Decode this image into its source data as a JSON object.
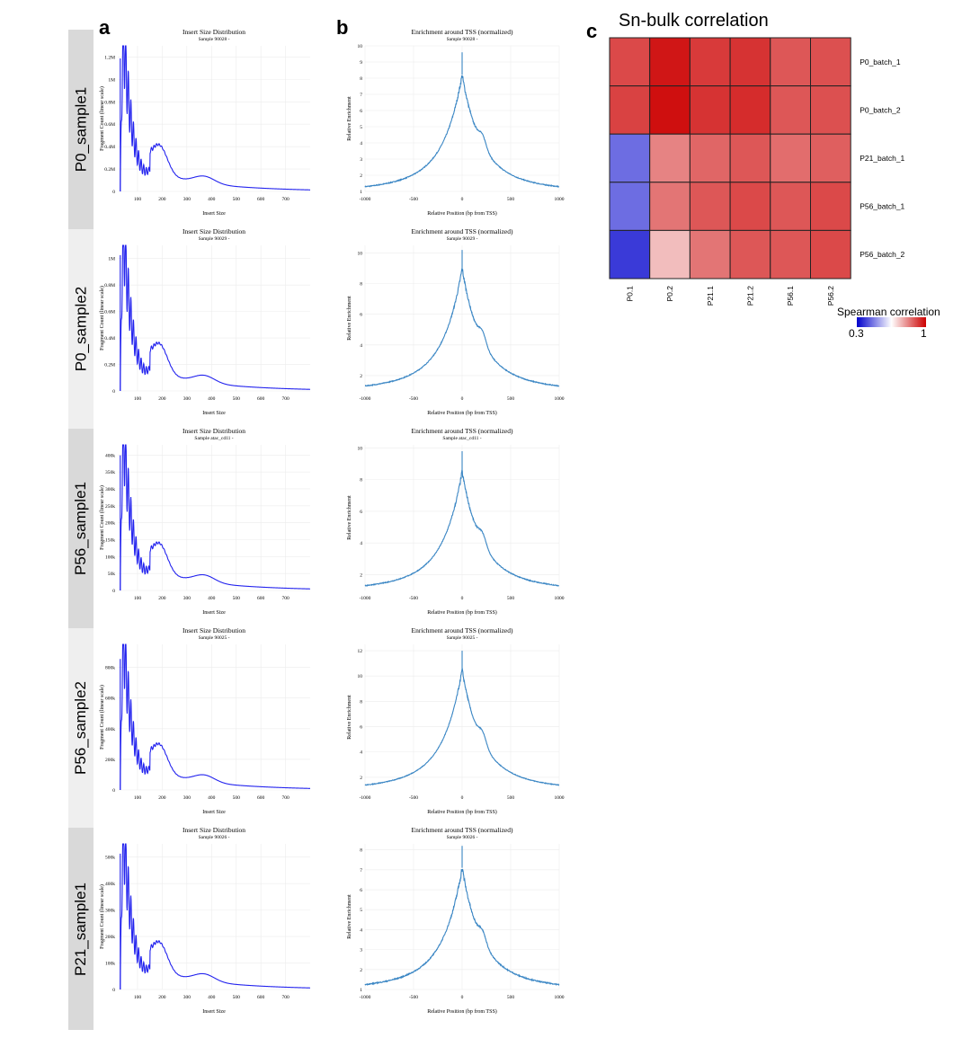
{
  "panels": {
    "a": "a",
    "b": "b",
    "c": "c"
  },
  "row_labels": [
    "P0_sample1",
    "P0_sample2",
    "P56_sample1",
    "P56_sample2",
    "P21_sample1"
  ],
  "colors": {
    "insert_line": "#2222ee",
    "tss_line": "#3a86c4",
    "row_band": "#d9d9d9",
    "row_band_alt": "#efefef"
  },
  "chart_data": [
    {
      "type": "line",
      "panel": "a",
      "row": "P0_sample1",
      "title": "Insert Size Distribution",
      "subtitle": "Sample 90028 -",
      "xlabel": "Insert Size",
      "ylabel": "Fragment Count (linear scale)",
      "xlim": [
        20,
        800
      ],
      "ylim": [
        0,
        1300000
      ],
      "xticks": [
        100,
        200,
        300,
        400,
        500,
        600,
        700
      ],
      "yticks": [
        0,
        200000,
        400000,
        600000,
        800000,
        1000000,
        1200000
      ],
      "ytick_labels": [
        "0",
        "0.2M",
        "0.4M",
        "0.6M",
        "0.8M",
        "1M",
        "1.2M"
      ],
      "peak": 1250000
    },
    {
      "type": "line",
      "panel": "b",
      "row": "P0_sample1",
      "title": "Enrichment around TSS (normalized)",
      "subtitle": "Sample 90028 -",
      "xlabel": "Relative Position (bp from TSS)",
      "ylabel": "Relative Enrichment",
      "xlim": [
        -1000,
        1000
      ],
      "ylim": [
        1,
        10
      ],
      "xticks": [
        -1000,
        -500,
        0,
        500,
        1000
      ],
      "yticks": [
        1,
        2,
        3,
        4,
        5,
        6,
        7,
        8,
        9,
        10
      ],
      "peak": 9.6,
      "summit": 8.2,
      "secondary": 3.6
    },
    {
      "type": "line",
      "panel": "a",
      "row": "P0_sample2",
      "title": "Insert Size Distribution",
      "subtitle": "Sample 90029 -",
      "xlabel": "Insert Size",
      "ylabel": "Fragment Count (linear scale)",
      "xlim": [
        20,
        800
      ],
      "ylim": [
        0,
        1100000
      ],
      "xticks": [
        100,
        200,
        300,
        400,
        500,
        600,
        700
      ],
      "yticks": [
        0,
        200000,
        400000,
        600000,
        800000,
        1000000
      ],
      "ytick_labels": [
        "0",
        "0.2M",
        "0.4M",
        "0.6M",
        "0.8M",
        "1M"
      ],
      "peak": 1080000
    },
    {
      "type": "line",
      "panel": "b",
      "row": "P0_sample2",
      "title": "Enrichment around TSS (normalized)",
      "subtitle": "Sample 90029 -",
      "xlabel": "Relative Position (bp from TSS)",
      "ylabel": "Relative Enrichment",
      "xlim": [
        -1000,
        1000
      ],
      "ylim": [
        1,
        10.5
      ],
      "xticks": [
        -1000,
        -500,
        0,
        500,
        1000
      ],
      "yticks": [
        2,
        4,
        6,
        8,
        10
      ],
      "peak": 10.2,
      "summit": 9.0,
      "secondary": 3.7
    },
    {
      "type": "line",
      "panel": "a",
      "row": "P56_sample1",
      "title": "Insert Size Distribution",
      "subtitle": "Sample atac_cd11 -",
      "xlabel": "Insert Size",
      "ylabel": "Fragment Count (linear scale)",
      "xlim": [
        20,
        800
      ],
      "ylim": [
        0,
        430000
      ],
      "xticks": [
        100,
        200,
        300,
        400,
        500,
        600,
        700
      ],
      "yticks": [
        0,
        50000,
        100000,
        150000,
        200000,
        250000,
        300000,
        350000,
        400000
      ],
      "ytick_labels": [
        "0",
        "50k",
        "100k",
        "150k",
        "200k",
        "250k",
        "300k",
        "350k",
        "400k"
      ],
      "peak": 420000
    },
    {
      "type": "line",
      "panel": "b",
      "row": "P56_sample1",
      "title": "Enrichment around TSS (normalized)",
      "subtitle": "Sample atac_cd11 -",
      "xlabel": "Relative Position (bp from TSS)",
      "ylabel": "Relative Enrichment",
      "xlim": [
        -1000,
        1000
      ],
      "ylim": [
        1,
        10.2
      ],
      "xticks": [
        -1000,
        -500,
        0,
        500,
        1000
      ],
      "yticks": [
        2,
        4,
        6,
        8,
        10
      ],
      "peak": 9.8,
      "summit": 8.5,
      "secondary": 3.4
    },
    {
      "type": "line",
      "panel": "a",
      "row": "P56_sample2",
      "title": "Insert Size Distribution",
      "subtitle": "Sample 90025 -",
      "xlabel": "Insert Size",
      "ylabel": "Fragment Count (linear scale)",
      "xlim": [
        20,
        800
      ],
      "ylim": [
        0,
        950000
      ],
      "xticks": [
        100,
        200,
        300,
        400,
        500,
        600,
        700
      ],
      "yticks": [
        0,
        200000,
        400000,
        600000,
        800000
      ],
      "ytick_labels": [
        "0",
        "200k",
        "400k",
        "600k",
        "800k"
      ],
      "peak": 900000
    },
    {
      "type": "line",
      "panel": "b",
      "row": "P56_sample2",
      "title": "Enrichment around TSS (normalized)",
      "subtitle": "Sample 90025 -",
      "xlabel": "Relative Position (bp from TSS)",
      "ylabel": "Relative Enrichment",
      "xlim": [
        -1000,
        1000
      ],
      "ylim": [
        1,
        12.5
      ],
      "xticks": [
        -1000,
        -500,
        0,
        500,
        1000
      ],
      "yticks": [
        2,
        4,
        6,
        8,
        10,
        12
      ],
      "peak": 12.0,
      "summit": 10.5,
      "secondary": 3.4
    },
    {
      "type": "line",
      "panel": "a",
      "row": "P21_sample1",
      "title": "Insert Size Distribution",
      "subtitle": "Sample 90026 -",
      "xlabel": "Insert Size",
      "ylabel": "Fragment Count (linear scale)",
      "xlim": [
        20,
        800
      ],
      "ylim": [
        0,
        550000
      ],
      "xticks": [
        100,
        200,
        300,
        400,
        500,
        600,
        700
      ],
      "yticks": [
        0,
        100000,
        200000,
        300000,
        400000,
        500000
      ],
      "ytick_labels": [
        "0",
        "100k",
        "200k",
        "300k",
        "400k",
        "500k"
      ],
      "peak": 540000
    },
    {
      "type": "line",
      "panel": "b",
      "row": "P21_sample1",
      "title": "Enrichment around TSS (normalized)",
      "subtitle": "Sample 90026 -",
      "xlabel": "Relative Position (bp from TSS)",
      "ylabel": "Relative Enrichment",
      "xlim": [
        -1000,
        1000
      ],
      "ylim": [
        1,
        8.3
      ],
      "xticks": [
        -1000,
        -500,
        0,
        500,
        1000
      ],
      "yticks": [
        1,
        2,
        3,
        4,
        5,
        6,
        7,
        8
      ],
      "peak": 8.2,
      "summit": 7.1,
      "secondary": 2.7
    },
    {
      "type": "heatmap",
      "panel": "c",
      "title": "Sn-bulk correlation",
      "rows": [
        "P0_batch_1",
        "P0_batch_2",
        "P21_batch_1",
        "P56_batch_1",
        "P56_batch_2"
      ],
      "columns": [
        "P0.1",
        "P0.2",
        "P21.1",
        "P21.2",
        "P56.1",
        "P56.2"
      ],
      "values": [
        [
          0.9,
          0.97,
          0.92,
          0.93,
          0.88,
          0.89
        ],
        [
          0.91,
          0.98,
          0.93,
          0.94,
          0.88,
          0.89
        ],
        [
          0.45,
          0.82,
          0.86,
          0.88,
          0.85,
          0.87
        ],
        [
          0.45,
          0.84,
          0.88,
          0.9,
          0.88,
          0.9
        ],
        [
          0.38,
          0.74,
          0.84,
          0.88,
          0.88,
          0.9
        ]
      ],
      "legend_title": "Spearman correlation",
      "legend_min": "0.3",
      "legend_max": "1",
      "range": [
        0.3,
        1
      ],
      "colors": {
        "low": "#0000cc",
        "mid": "#ffffff",
        "high": "#cc0000"
      }
    }
  ]
}
